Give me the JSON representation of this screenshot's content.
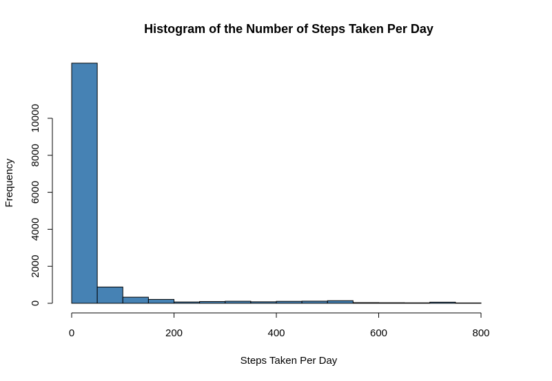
{
  "chart_data": {
    "type": "bar",
    "title": "Histogram of the Number of Steps Taken Per Day",
    "xlabel": "Steps Taken Per Day",
    "ylabel": "Frequency",
    "bin_width": 50,
    "bins": [
      {
        "start": 0,
        "end": 50,
        "count": 12980
      },
      {
        "start": 50,
        "end": 100,
        "count": 880
      },
      {
        "start": 100,
        "end": 150,
        "count": 330
      },
      {
        "start": 150,
        "end": 200,
        "count": 210
      },
      {
        "start": 200,
        "end": 250,
        "count": 70
      },
      {
        "start": 250,
        "end": 300,
        "count": 95
      },
      {
        "start": 300,
        "end": 350,
        "count": 110
      },
      {
        "start": 350,
        "end": 400,
        "count": 80
      },
      {
        "start": 400,
        "end": 450,
        "count": 105
      },
      {
        "start": 450,
        "end": 500,
        "count": 115
      },
      {
        "start": 500,
        "end": 550,
        "count": 140
      },
      {
        "start": 550,
        "end": 600,
        "count": 35
      },
      {
        "start": 600,
        "end": 650,
        "count": 30
      },
      {
        "start": 650,
        "end": 700,
        "count": 25
      },
      {
        "start": 700,
        "end": 750,
        "count": 60
      },
      {
        "start": 750,
        "end": 800,
        "count": 20
      }
    ],
    "xlim": [
      0,
      850
    ],
    "ylim": [
      0,
      13000
    ],
    "xticks": [
      0,
      200,
      400,
      600,
      800
    ],
    "yticks": [
      0,
      2000,
      4000,
      6000,
      8000,
      10000
    ],
    "bar_color": "#4682B4",
    "grid": false,
    "legend": "none"
  }
}
